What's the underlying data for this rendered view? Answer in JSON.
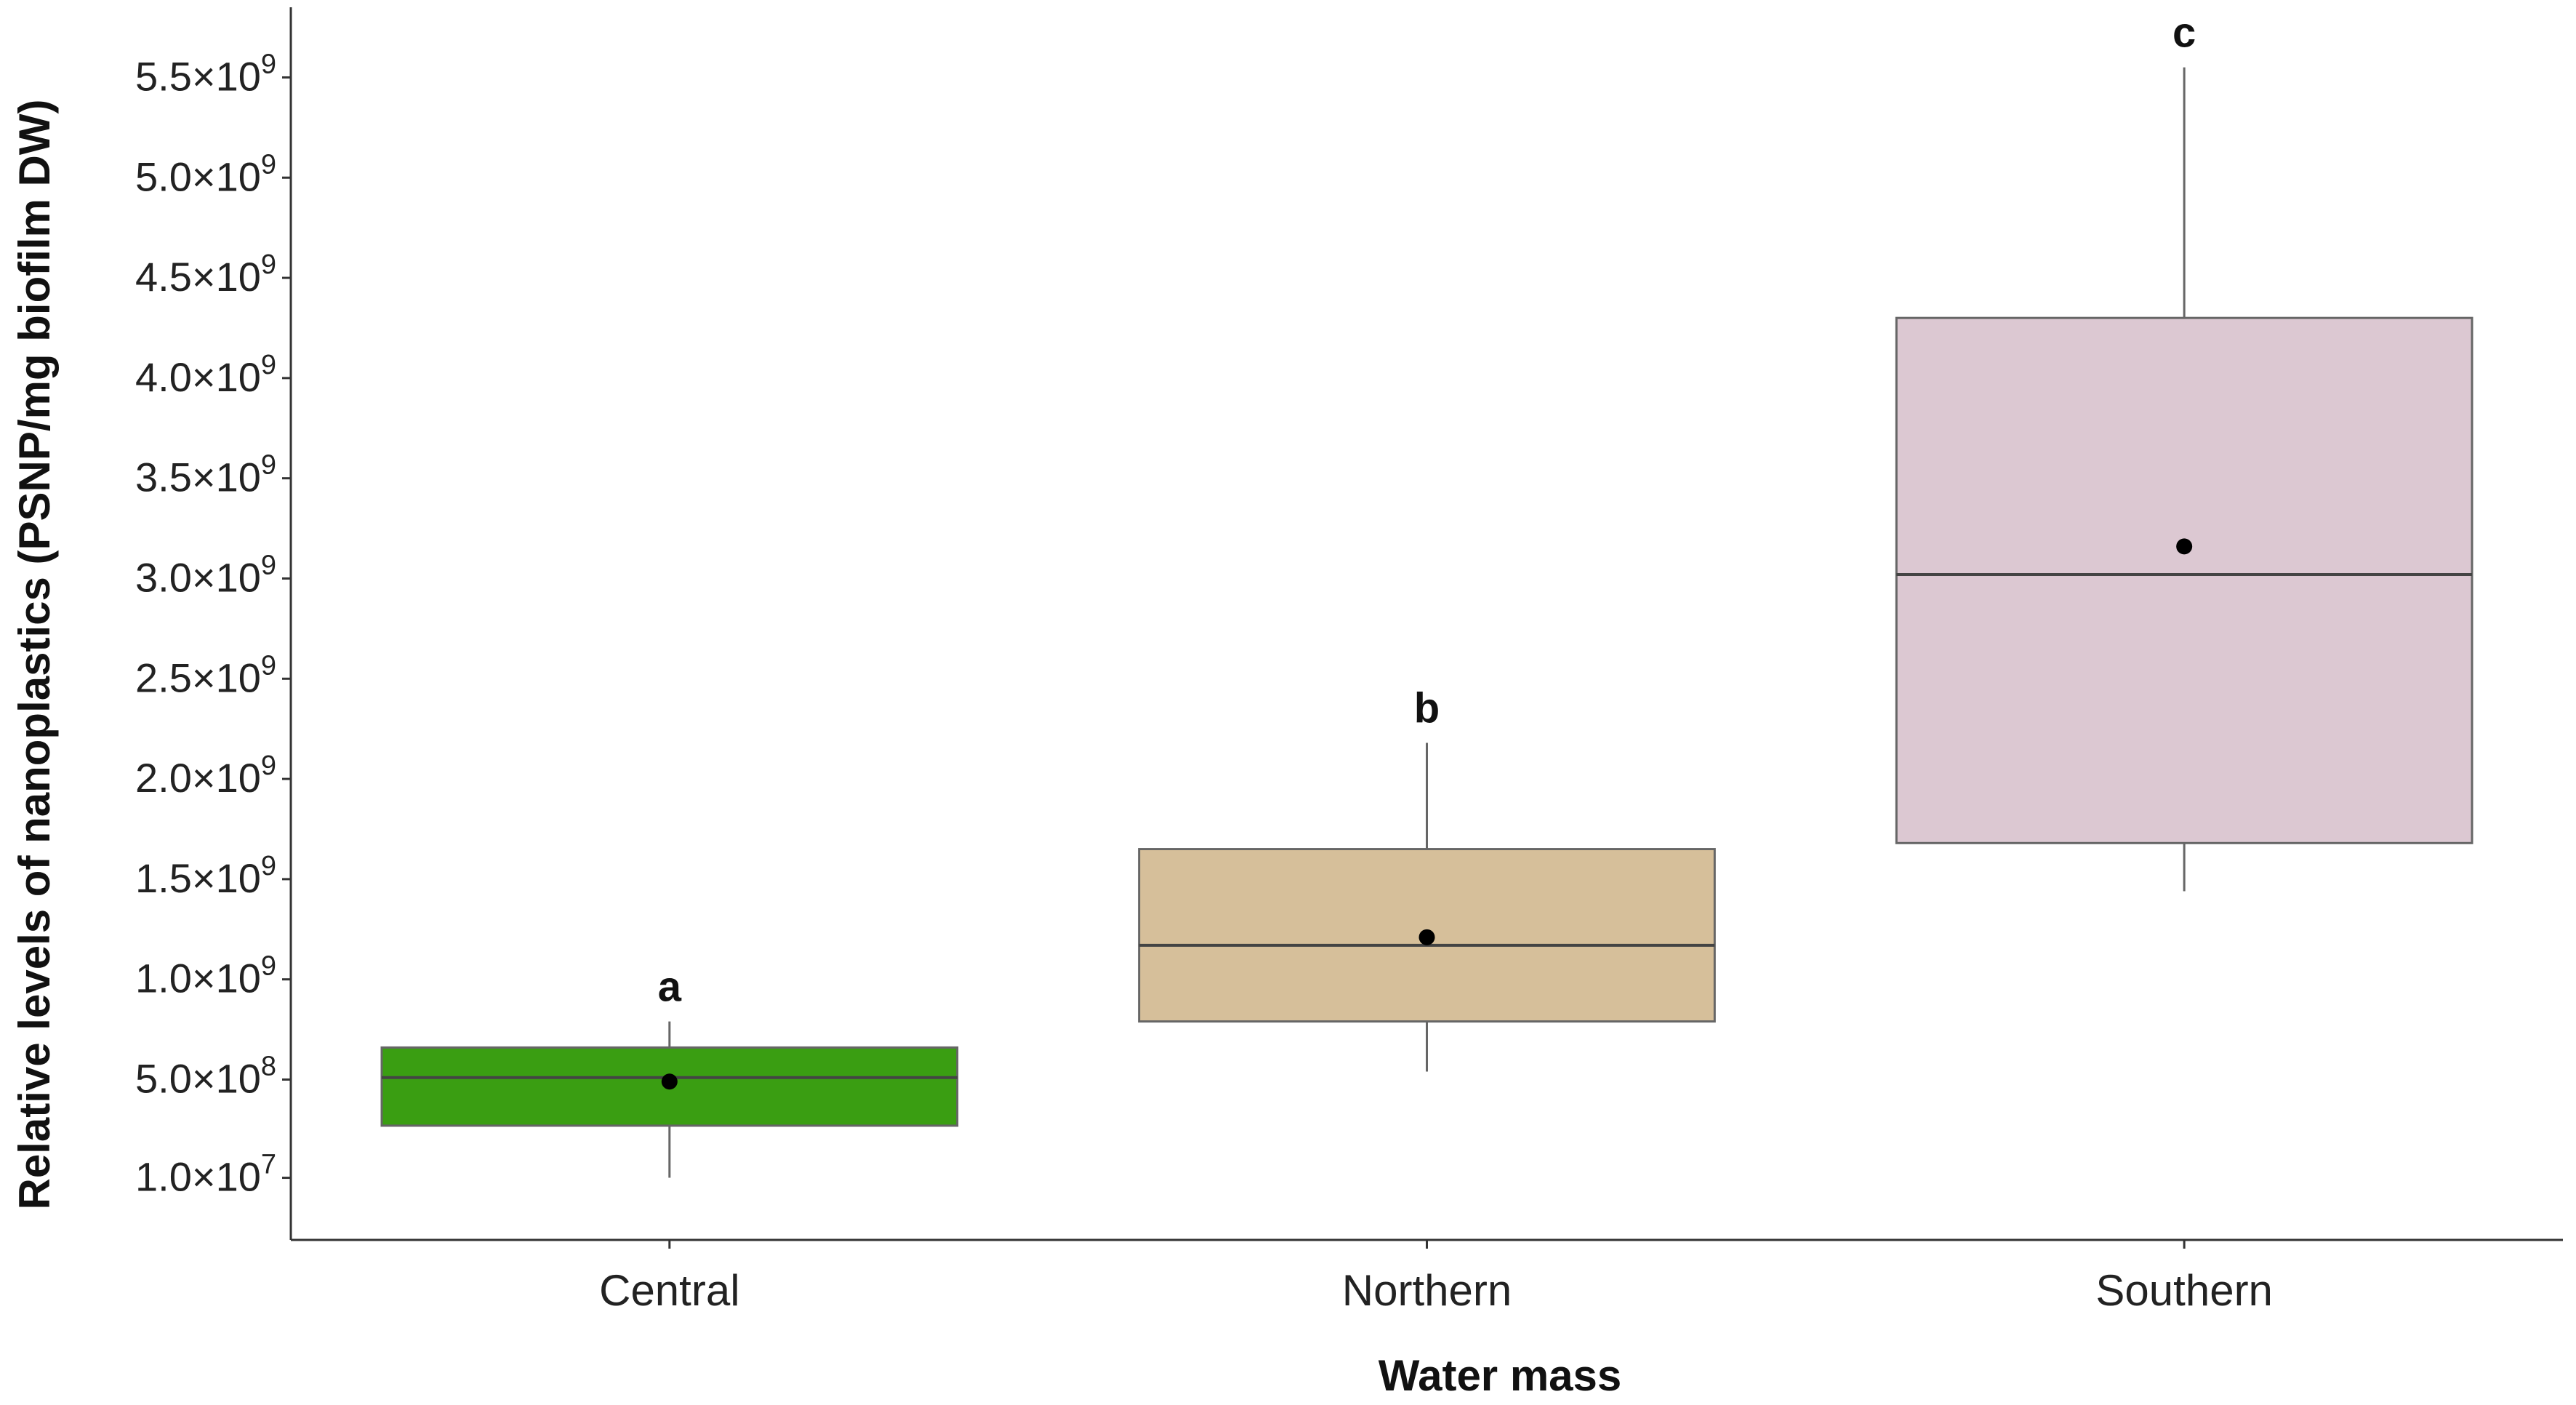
{
  "chart_data": {
    "type": "box",
    "xlabel": "Water mass",
    "ylabel": "Relative levels of nanoplastics (PSNP/mg biofilm DW)",
    "categories": [
      "Central",
      "Northern",
      "Southern"
    ],
    "yticks": [
      {
        "value": 10000000,
        "mantissa": "1.0×10",
        "exponent": "7"
      },
      {
        "value": 500000000,
        "mantissa": "5.0×10",
        "exponent": "8"
      },
      {
        "value": 1000000000,
        "mantissa": "1.0×10",
        "exponent": "9"
      },
      {
        "value": 1500000000,
        "mantissa": "1.5×10",
        "exponent": "9"
      },
      {
        "value": 2000000000,
        "mantissa": "2.0×10",
        "exponent": "9"
      },
      {
        "value": 2500000000,
        "mantissa": "2.5×10",
        "exponent": "9"
      },
      {
        "value": 3000000000,
        "mantissa": "3.0×10",
        "exponent": "9"
      },
      {
        "value": 3500000000,
        "mantissa": "3.5×10",
        "exponent": "9"
      },
      {
        "value": 4000000000,
        "mantissa": "4.0×10",
        "exponent": "9"
      },
      {
        "value": 4500000000,
        "mantissa": "4.5×10",
        "exponent": "9"
      },
      {
        "value": 5000000000,
        "mantissa": "5.0×10",
        "exponent": "9"
      },
      {
        "value": 5500000000,
        "mantissa": "5.5×10",
        "exponent": "9"
      }
    ],
    "ylim": [
      -300000000,
      5850000000
    ],
    "boxes": [
      {
        "category": "Central",
        "whisker_low": 10000000,
        "q1": 270000000,
        "median": 510000000,
        "q3": 660000000,
        "whisker_high": 790000000,
        "mean": 490000000,
        "letter": "a",
        "color": "#3a9e12"
      },
      {
        "category": "Northern",
        "whisker_low": 540000000,
        "q1": 790000000,
        "median": 1170000000,
        "q3": 1650000000,
        "whisker_high": 2180000000,
        "mean": 1210000000,
        "letter": "b",
        "color": "#d6bf9a"
      },
      {
        "category": "Southern",
        "whisker_low": 1440000000,
        "q1": 1680000000,
        "median": 3020000000,
        "q3": 4300000000,
        "whisker_high": 5550000000,
        "mean": 3160000000,
        "letter": "c",
        "color": "#dcc8d2"
      }
    ],
    "legend": "none",
    "grid": false
  }
}
